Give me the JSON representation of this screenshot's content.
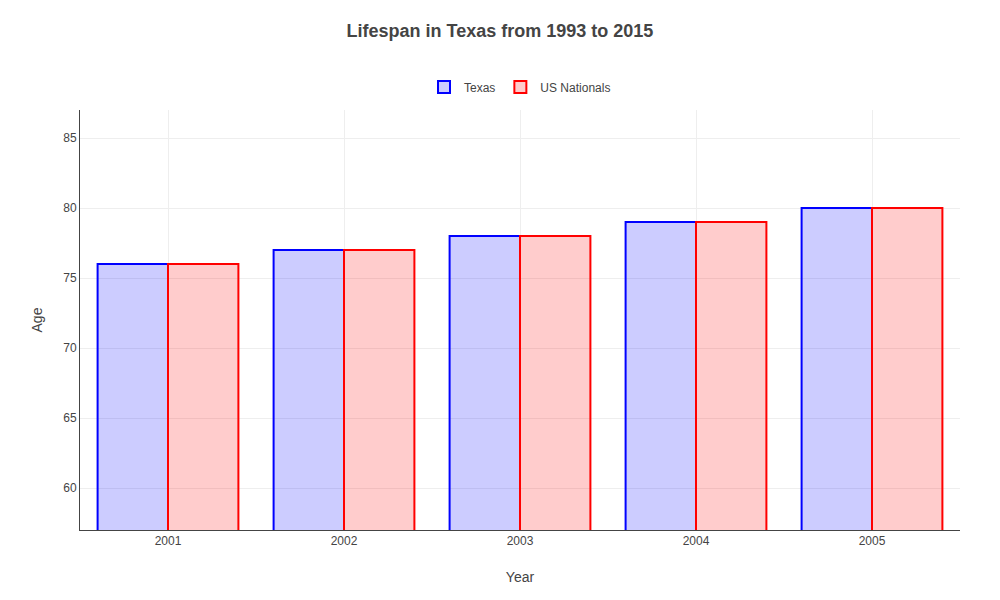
{
  "chart_data": {
    "type": "bar",
    "title": "Lifespan in Texas from 1993 to 2015",
    "xlabel": "Year",
    "ylabel": "Age",
    "categories": [
      "2001",
      "2002",
      "2003",
      "2004",
      "2005"
    ],
    "series": [
      {
        "name": "Texas",
        "color": "#0000ff",
        "values": [
          76,
          77,
          78,
          79,
          80
        ]
      },
      {
        "name": "US Nationals",
        "color": "#ff0000",
        "values": [
          76,
          77,
          78,
          79,
          80
        ]
      }
    ],
    "ylim": [
      57,
      87
    ],
    "yticks": [
      60,
      65,
      70,
      75,
      80,
      85
    ],
    "grid": true,
    "legend": "top"
  }
}
